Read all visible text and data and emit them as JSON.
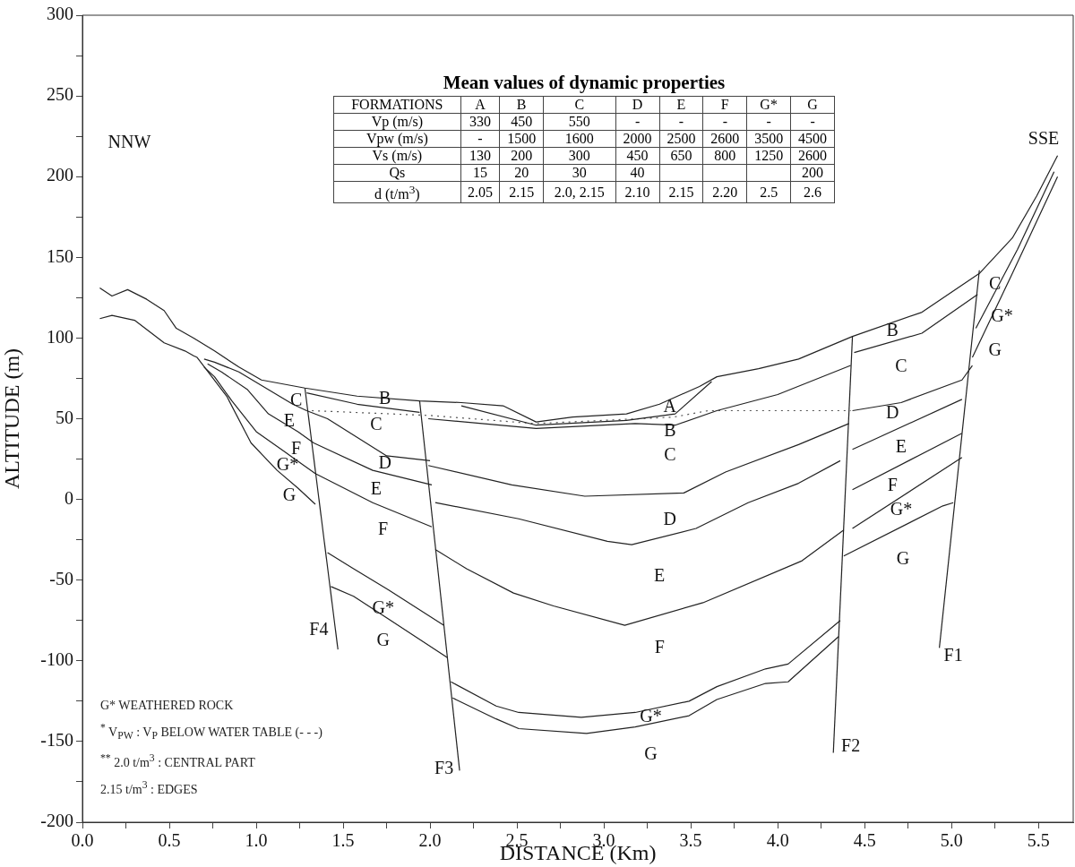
{
  "chart_data": [
    {
      "type": "line",
      "xlabel": "DISTANCE (Km)",
      "ylabel": "ALTITUDE (m)",
      "xlim": [
        0,
        5.7
      ],
      "ylim": [
        -200,
        300
      ],
      "xticks": [
        {
          "value": 0,
          "label": "0.0"
        },
        {
          "value": 0.25,
          "label": null
        },
        0.5,
        {
          "value": 0.75,
          "label": null
        },
        {
          "value": 1,
          "label": "1.0"
        },
        {
          "value": 1.25,
          "label": null
        },
        1.5,
        {
          "value": 1.75,
          "label": null
        },
        {
          "value": 2,
          "label": "2.0"
        },
        {
          "value": 2.25,
          "label": null
        },
        2.5,
        {
          "value": 2.75,
          "label": null
        },
        {
          "value": 3,
          "label": "3.0"
        },
        {
          "value": 3.25,
          "label": null
        },
        3.5,
        {
          "value": 3.75,
          "label": null
        },
        {
          "value": 4,
          "label": "4.0"
        },
        {
          "value": 4.25,
          "label": null
        },
        4.5,
        {
          "value": 4.75,
          "label": null
        },
        {
          "value": 5,
          "label": "5.0"
        },
        {
          "value": 5.25,
          "label": null
        },
        5.5
      ],
      "yticks": [
        -200,
        {
          "value": -175,
          "label": null
        },
        -150,
        {
          "value": -125,
          "label": null
        },
        -100,
        {
          "value": -75,
          "label": null
        },
        -50,
        {
          "value": -25,
          "label": null
        },
        0,
        {
          "value": 25,
          "label": null
        },
        50,
        {
          "value": 75,
          "label": null
        },
        100,
        {
          "value": 125,
          "label": null
        },
        150,
        {
          "value": 175,
          "label": null
        },
        200,
        {
          "value": 225,
          "label": null
        },
        250,
        {
          "value": 275,
          "label": null
        },
        300
      ],
      "grid": false,
      "legend": false,
      "marker": "none",
      "line_style": "solid",
      "series": [
        {
          "color": "#222222",
          "x": [
            0.1,
            0.17,
            0.26,
            0.37,
            0.47,
            0.54,
            0.64,
            0.76,
            0.9,
            1.03,
            1.28,
            1.58,
            1.94,
            2.18,
            2.42,
            2.61,
            2.82,
            3.13,
            3.32,
            3.55,
            3.65,
            3.89,
            4.12,
            4.43,
            4.83,
            5.16,
            5.35,
            5.49,
            5.61
          ],
          "values": [
            131,
            126,
            130,
            124,
            117,
            106,
            100,
            92,
            82,
            74,
            69,
            64,
            61,
            60,
            58,
            48,
            51,
            53,
            59,
            70,
            76,
            81,
            87,
            101,
            116,
            140,
            162,
            188,
            213
          ]
        },
        {
          "color": "#222222",
          "x": [
            2.18,
            2.61,
            3.13,
            3.41,
            3.62
          ],
          "values": [
            58,
            46,
            49,
            53,
            73
          ]
        },
        {
          "color": "#222222",
          "x": [
            1.29,
            1.58,
            1.94
          ],
          "values": [
            66,
            59,
            54
          ]
        },
        {
          "color": "#222222",
          "x": [
            1.99,
            2.61,
            3.18,
            3.41,
            3.65,
            4.0,
            4.42
          ],
          "values": [
            50,
            44,
            47,
            46,
            55,
            65,
            83
          ]
        },
        {
          "color": "#222222",
          "x": [
            4.44,
            4.83,
            5.15
          ],
          "values": [
            91,
            103,
            127
          ]
        },
        {
          "color": "#222222",
          "x": [
            1.99,
            2.47,
            2.89,
            3.46,
            3.7,
            4.12,
            4.41
          ],
          "values": [
            21,
            9,
            2,
            4,
            17,
            34,
            47
          ]
        },
        {
          "color": "#222222",
          "x": [
            4.43,
            4.71,
            5.06,
            5.12
          ],
          "values": [
            55,
            60,
            74,
            83
          ]
        },
        {
          "color": "#222222",
          "x": [
            2.03,
            2.51,
            3.02,
            3.16,
            3.53,
            3.83,
            4.12,
            4.36
          ],
          "values": [
            -2,
            -12,
            -26,
            -28,
            -18,
            -2,
            10,
            24
          ]
        },
        {
          "color": "#222222",
          "x": [
            4.43,
            5.06
          ],
          "values": [
            31,
            62
          ]
        },
        {
          "color": "#222222",
          "x": [
            2.03,
            2.21,
            2.48,
            2.71,
            3.12,
            3.57,
            4.14,
            4.38
          ],
          "values": [
            -31,
            -43,
            -58,
            -66,
            -78,
            -64,
            -38,
            -19
          ]
        },
        {
          "color": "#222222",
          "x": [
            4.43,
            5.06
          ],
          "values": [
            6,
            41
          ]
        },
        {
          "color": "#222222",
          "x": [
            1.41,
            1.56,
            1.76,
            2.08
          ],
          "values": [
            -33,
            -43,
            -56,
            -78
          ]
        },
        {
          "color": "#222222",
          "x": [
            2.12,
            2.38,
            2.51,
            2.87,
            3.18,
            3.49,
            3.65,
            3.93,
            4.06,
            4.36
          ],
          "values": [
            -113,
            -128,
            -132,
            -135,
            -132,
            -125,
            -116,
            -105,
            -102,
            -75
          ]
        },
        {
          "color": "#222222",
          "x": [
            4.43,
            5.06
          ],
          "values": [
            -18,
            26
          ]
        },
        {
          "color": "#222222",
          "x": [
            1.43,
            1.56,
            1.76,
            2.1
          ],
          "values": [
            -54,
            -60,
            -74,
            -98
          ]
        },
        {
          "color": "#222222",
          "x": [
            2.13,
            2.38,
            2.51,
            2.9,
            3.18,
            3.49,
            3.65,
            3.93,
            4.06,
            4.35
          ],
          "values": [
            -123,
            -136,
            -142,
            -145,
            -141,
            -134,
            -124,
            -114,
            -113,
            -85
          ]
        },
        {
          "color": "#222222",
          "x": [
            4.38,
            4.95,
            5.01
          ],
          "values": [
            -35,
            -4,
            -2
          ]
        },
        {
          "color": "#222222",
          "x": [
            5.12,
            5.35,
            5.61
          ],
          "values": [
            88,
            140,
            200
          ]
        },
        {
          "color": "#222222",
          "x": [
            5.14,
            5.38,
            5.59
          ],
          "values": [
            106,
            155,
            203
          ]
        },
        {
          "color": "#222222",
          "x": [
            0.1,
            0.17,
            0.3,
            0.47,
            0.59,
            0.64,
            0.66,
            0.83,
            0.97,
            1.12,
            1.24,
            1.34
          ],
          "values": [
            112,
            114,
            111,
            97,
            92,
            89,
            88,
            64,
            35,
            18,
            7,
            -3
          ]
        },
        {
          "color": "#222222",
          "x": [
            0.7,
            0.76,
            0.9,
            1.07,
            1.21,
            1.29,
            1.41,
            1.75,
            2.0
          ],
          "values": [
            87,
            85,
            79,
            68,
            59,
            55,
            50,
            27,
            24
          ]
        },
        {
          "color": "#222222",
          "x": [
            0.72,
            0.8,
            0.95,
            1.07,
            1.24,
            1.33,
            1.67,
            2.01
          ],
          "values": [
            84,
            79,
            68,
            53,
            42,
            35,
            18,
            9
          ]
        },
        {
          "color": "#222222",
          "x": [
            0.7,
            0.76,
            0.86,
            1.0,
            1.17,
            1.34,
            1.67,
            2.01
          ],
          "values": [
            82,
            76,
            61,
            42,
            29,
            16,
            -2,
            -17
          ]
        },
        {
          "color": "#222222",
          "x": [
            1.28,
            1.47
          ],
          "values": [
            69,
            -93
          ]
        },
        {
          "color": "#222222",
          "x": [
            1.94,
            2.17
          ],
          "values": [
            61,
            -168
          ]
        },
        {
          "color": "#222222",
          "x": [
            4.43,
            4.32
          ],
          "values": [
            101,
            -157
          ]
        },
        {
          "color": "#222222",
          "x": [
            5.16,
            4.93
          ],
          "values": [
            142,
            -92
          ]
        },
        {
          "color": "#555555",
          "line_style": "dotted",
          "x": [
            1.32,
            2.0,
            2.6,
            3.4,
            3.6,
            4.42
          ],
          "values": [
            55,
            52,
            47,
            51,
            55,
            55
          ]
        }
      ],
      "annotations": [
        "NNW",
        "SSE",
        "C",
        "E",
        "F",
        "G*",
        "G",
        "B",
        "C",
        "D",
        "E",
        "F",
        "G*",
        "G",
        "A",
        "B",
        "C",
        "D",
        "E",
        "F",
        "G*",
        "G",
        "B",
        "C",
        "D",
        "E",
        "F",
        "G*",
        "G",
        "C",
        "G*",
        "G",
        "F4",
        "F3",
        "F2",
        "F1",
        "G* WEATHERED ROCK",
        "$^{*}$ V$_{PW}$ : V$_{P}$ BELOW WATER TABLE (- - -)",
        "$^{**}$ 2.0 t/m$^{3}$ : CENTRAL PART",
        "2.15 t/m$^{3}$ : EDGES"
      ]
    },
    {
      "type": "other",
      "title": "Mean values of dynamic properties",
      "xlabel": "FORMATIONS",
      "categories": [
        "A",
        "B",
        "C",
        "D",
        "E",
        "F",
        "G*",
        "G"
      ],
      "series": [
        {
          "name": "Vp (m/s)",
          "values": [
            330,
            450,
            550,
            null,
            null,
            null,
            null,
            null
          ],
          "value_labels": [
            "330",
            "450",
            "550",
            "-",
            "-",
            "-",
            "-",
            "-"
          ]
        },
        {
          "name": "Vpw (m/s)",
          "values": [
            null,
            1500,
            1600,
            2000,
            2500,
            2600,
            3500,
            4500
          ],
          "value_labels": [
            "-",
            "1500",
            "1600",
            "2000",
            "2500",
            "2600",
            "3500",
            "4500"
          ]
        },
        {
          "name": "Vs (m/s)",
          "values": [
            130,
            200,
            300,
            450,
            650,
            800,
            1250,
            2600
          ],
          "value_labels": [
            "130",
            "200",
            "300",
            "450",
            "650",
            "800",
            "1250",
            "2600"
          ]
        },
        {
          "name": "Qs",
          "values": [
            15,
            20,
            30,
            40,
            null,
            null,
            null,
            200
          ],
          "value_labels": [
            "15",
            "20",
            "30",
            "40",
            null,
            null,
            null,
            "200"
          ]
        },
        {
          "name": "d (t/m$^{3}$)",
          "values": [
            2.05,
            2.15,
            null,
            2.1,
            2.15,
            2.2,
            2.5,
            2.6
          ],
          "value_labels": [
            "2.05",
            "2.15",
            "2.0, 2.15",
            "2.10",
            "2.15",
            "2.20",
            "2.5",
            "2.6"
          ]
        }
      ]
    }
  ]
}
